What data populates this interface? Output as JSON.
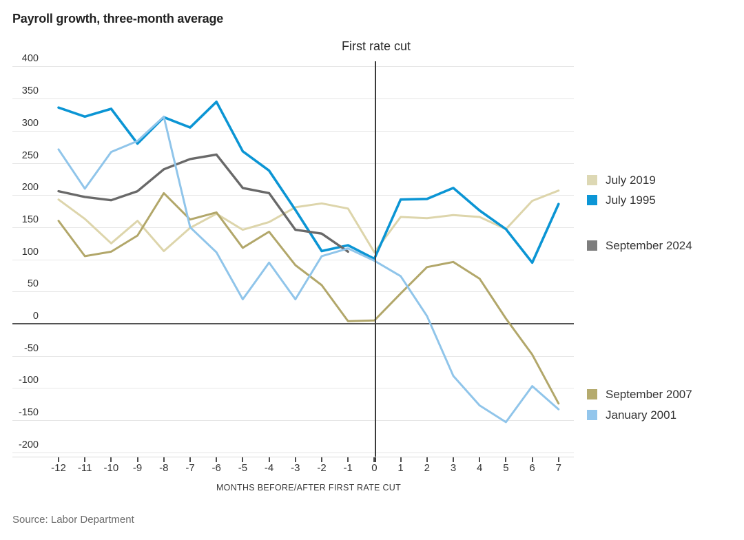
{
  "title": "Payroll growth, three-month average",
  "annotation": "First rate cut",
  "source": "Source: Labor Department",
  "x_axis": {
    "label": "MONTHS BEFORE/AFTER FIRST RATE CUT",
    "ticks": [
      "-12",
      "-11",
      "-10",
      "-9",
      "-8",
      "-7",
      "-6",
      "-5",
      "-4",
      "-3",
      "-2",
      "-1",
      "0",
      "1",
      "2",
      "3",
      "4",
      "5",
      "6",
      "7"
    ]
  },
  "y_axis": {
    "ticks": [
      400,
      350,
      300,
      250,
      200,
      150,
      100,
      50,
      0,
      -50,
      -100,
      -150,
      -200
    ]
  },
  "colors": {
    "grid": "#e6e6e6",
    "zero_line": "#545454",
    "annotation_line": "#3b3b3b",
    "text_dark": "#222222",
    "text_axis": "#333333",
    "text_source": "#6b6b6b"
  },
  "chart_data": {
    "type": "line",
    "title": "Payroll growth, three-month average",
    "xlabel": "MONTHS BEFORE/AFTER FIRST RATE CUT",
    "ylabel": "",
    "x": [
      -12,
      -11,
      -10,
      -9,
      -8,
      -7,
      -6,
      -5,
      -4,
      -3,
      -2,
      -1,
      0,
      1,
      2,
      3,
      4,
      5,
      6,
      7
    ],
    "ylim": [
      -200,
      400
    ],
    "xlim": [
      -12,
      7
    ],
    "grid": true,
    "annotation_x": 0,
    "legend_position": "right",
    "series": [
      {
        "name": "July 2019",
        "color": "#ddd5ab",
        "width": 3,
        "values": [
          193,
          163,
          125,
          160,
          113,
          149,
          171,
          146,
          158,
          181,
          187,
          179,
          111,
          166,
          164,
          169,
          166,
          147,
          191,
          207
        ]
      },
      {
        "name": "July 1995",
        "color": "#0b95d4",
        "width": 3.6,
        "values": [
          336,
          322,
          334,
          280,
          321,
          305,
          345,
          268,
          238,
          177,
          113,
          122,
          101,
          193,
          194,
          211,
          176,
          147,
          95,
          186
        ]
      },
      {
        "name": "September 2024",
        "color": "#696969",
        "width": 3.4,
        "values": [
          206,
          197,
          192,
          206,
          240,
          256,
          263,
          211,
          203,
          146,
          140,
          112,
          null,
          null,
          null,
          null,
          null,
          null,
          null,
          null
        ]
      },
      {
        "name": "September 2007",
        "color": "#b2a76a",
        "width": 3,
        "values": [
          160,
          105,
          112,
          137,
          203,
          162,
          173,
          118,
          143,
          91,
          60,
          4,
          5,
          47,
          88,
          96,
          70,
          8,
          -48,
          -124
        ]
      },
      {
        "name": "January 2001",
        "color": "#90c5ea",
        "width": 3,
        "values": [
          271,
          210,
          267,
          284,
          322,
          150,
          111,
          38,
          95,
          38,
          105,
          117,
          98,
          74,
          12,
          -81,
          -127,
          -153,
          -97,
          -133
        ]
      }
    ]
  },
  "legend": {
    "items": [
      {
        "label": "July 2019",
        "swatch": "#ddd8b4"
      },
      {
        "label": "July 1995",
        "swatch": "#0c96d6"
      },
      {
        "label": "September 2024",
        "swatch": "#7d7d7d"
      },
      {
        "label": "September 2007",
        "swatch": "#b5ab6e"
      },
      {
        "label": "January 2001",
        "swatch": "#93c6ec"
      }
    ]
  }
}
